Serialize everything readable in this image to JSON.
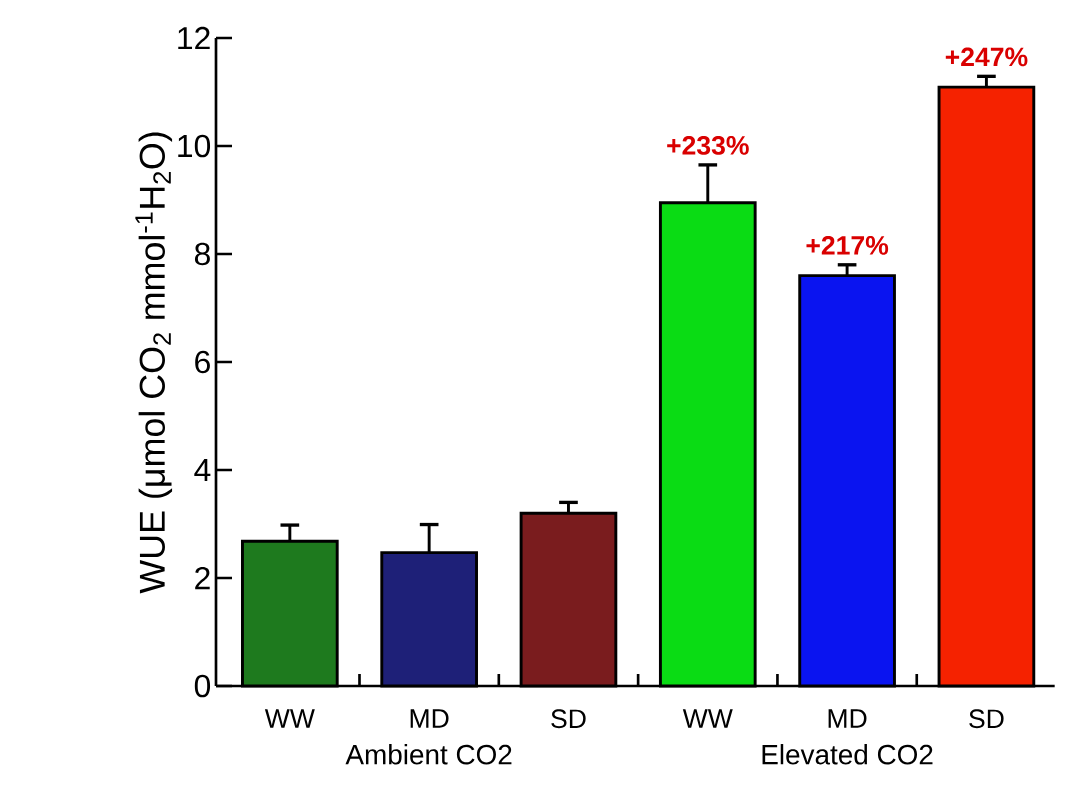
{
  "chart_data": {
    "type": "bar",
    "ylabel": "WUE (μmol CO$_{2}$ mmol$^{-1}$H$_{2}$O)",
    "categories": [
      "WW",
      "MD",
      "SD",
      "WW",
      "MD",
      "SD"
    ],
    "values": [
      2.68,
      2.47,
      3.2,
      8.95,
      7.6,
      11.09
    ],
    "errors": [
      0.3,
      0.52,
      0.2,
      0.7,
      0.2,
      0.2
    ],
    "colors": [
      "#1e7a1e",
      "#1e2078",
      "#7a1c1e",
      "#0adc14",
      "#0a14f0",
      "#f52200"
    ],
    "ylim": [
      0,
      12
    ],
    "yticks": [
      0,
      2,
      4,
      6,
      8,
      10,
      12
    ],
    "grid": false,
    "annotations": [
      "Ambient CO2",
      "Elevated CO2",
      "+233%",
      "+217%",
      "+247%"
    ]
  }
}
